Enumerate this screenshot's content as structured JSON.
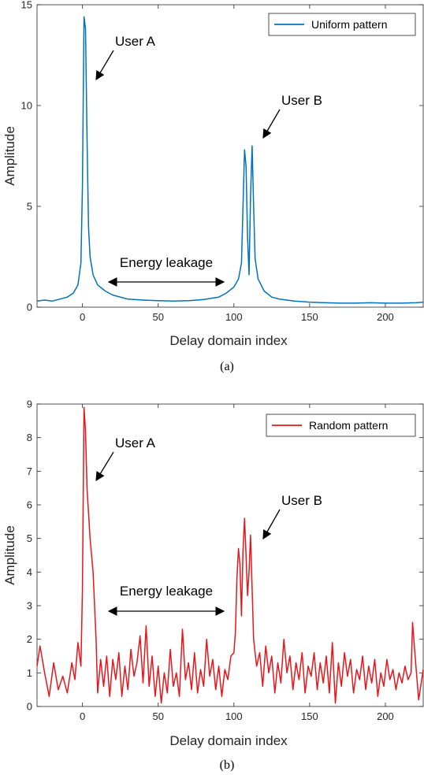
{
  "chart_data": [
    {
      "type": "line",
      "panel_caption": "(a)",
      "xlabel": "Delay domain index",
      "ylabel": "Amplitude",
      "xlim": [
        -30,
        225
      ],
      "ylim": [
        0,
        15
      ],
      "xticks": [
        0,
        50,
        100,
        150,
        200
      ],
      "yticks": [
        0,
        5,
        10,
        15
      ],
      "grid": false,
      "legend_position": "top-right",
      "series": [
        {
          "name": "Uniform pattern",
          "color": "#0072BD",
          "points": [
            [
              -30,
              0.3
            ],
            [
              -25,
              0.35
            ],
            [
              -20,
              0.3
            ],
            [
              -15,
              0.4
            ],
            [
              -10,
              0.5
            ],
            [
              -6,
              0.7
            ],
            [
              -3,
              1.1
            ],
            [
              -1,
              2.2
            ],
            [
              0,
              6.0
            ],
            [
              1,
              14.4
            ],
            [
              2,
              13.8
            ],
            [
              3,
              8.5
            ],
            [
              4,
              4.0
            ],
            [
              5,
              2.5
            ],
            [
              7,
              1.6
            ],
            [
              10,
              1.1
            ],
            [
              15,
              0.8
            ],
            [
              20,
              0.6
            ],
            [
              30,
              0.4
            ],
            [
              40,
              0.35
            ],
            [
              50,
              0.32
            ],
            [
              60,
              0.3
            ],
            [
              70,
              0.32
            ],
            [
              80,
              0.38
            ],
            [
              90,
              0.5
            ],
            [
              95,
              0.7
            ],
            [
              100,
              1.0
            ],
            [
              103,
              1.4
            ],
            [
              105,
              2.2
            ],
            [
              107,
              7.8
            ],
            [
              108,
              7.0
            ],
            [
              109,
              3.5
            ],
            [
              110,
              1.6
            ],
            [
              111,
              5.5
            ],
            [
              112,
              8.0
            ],
            [
              113,
              5.0
            ],
            [
              114,
              2.4
            ],
            [
              116,
              1.4
            ],
            [
              120,
              0.8
            ],
            [
              125,
              0.5
            ],
            [
              130,
              0.4
            ],
            [
              140,
              0.3
            ],
            [
              150,
              0.25
            ],
            [
              160,
              0.22
            ],
            [
              170,
              0.2
            ],
            [
              180,
              0.2
            ],
            [
              190,
              0.22
            ],
            [
              200,
              0.2
            ],
            [
              210,
              0.2
            ],
            [
              220,
              0.22
            ],
            [
              225,
              0.25
            ]
          ]
        }
      ],
      "annotations": {
        "user_a": "User A",
        "user_b": "User B",
        "leakage": "Energy leakage"
      }
    },
    {
      "type": "line",
      "panel_caption": "(b)",
      "xlabel": "Delay domain index",
      "ylabel": "Amplitude",
      "xlim": [
        -30,
        225
      ],
      "ylim": [
        0,
        9
      ],
      "xticks": [
        0,
        50,
        100,
        150,
        200
      ],
      "yticks": [
        0,
        1,
        2,
        3,
        4,
        5,
        6,
        7,
        8,
        9
      ],
      "grid": false,
      "legend_position": "top-right",
      "series": [
        {
          "name": "Random pattern",
          "color": "#E8161B",
          "points": [
            [
              -30,
              1.2
            ],
            [
              -28,
              1.8
            ],
            [
              -25,
              1.0
            ],
            [
              -22,
              0.3
            ],
            [
              -19,
              1.3
            ],
            [
              -16,
              0.5
            ],
            [
              -13,
              0.9
            ],
            [
              -10,
              0.4
            ],
            [
              -7,
              1.3
            ],
            [
              -5,
              0.8
            ],
            [
              -3,
              1.9
            ],
            [
              -1,
              1.2
            ],
            [
              0,
              3.5
            ],
            [
              1,
              8.9
            ],
            [
              2,
              8.2
            ],
            [
              3,
              6.5
            ],
            [
              5,
              5.0
            ],
            [
              7,
              4.0
            ],
            [
              9,
              2.0
            ],
            [
              10,
              0.4
            ],
            [
              12,
              1.4
            ],
            [
              14,
              0.6
            ],
            [
              16,
              1.5
            ],
            [
              18,
              0.3
            ],
            [
              20,
              1.4
            ],
            [
              22,
              0.8
            ],
            [
              24,
              1.6
            ],
            [
              26,
              0.3
            ],
            [
              28,
              1.2
            ],
            [
              30,
              0.5
            ],
            [
              32,
              1.7
            ],
            [
              34,
              0.9
            ],
            [
              36,
              1.3
            ],
            [
              38,
              2.1
            ],
            [
              40,
              0.7
            ],
            [
              42,
              2.4
            ],
            [
              44,
              0.6
            ],
            [
              46,
              1.5
            ],
            [
              48,
              0.3
            ],
            [
              50,
              1.2
            ],
            [
              52,
              0.1
            ],
            [
              54,
              1.0
            ],
            [
              56,
              0.4
            ],
            [
              58,
              1.7
            ],
            [
              60,
              0.6
            ],
            [
              62,
              1.0
            ],
            [
              64,
              0.3
            ],
            [
              66,
              2.3
            ],
            [
              68,
              0.8
            ],
            [
              70,
              1.3
            ],
            [
              72,
              0.5
            ],
            [
              74,
              1.6
            ],
            [
              76,
              0.4
            ],
            [
              78,
              1.1
            ],
            [
              80,
              0.6
            ],
            [
              82,
              2.0
            ],
            [
              84,
              0.9
            ],
            [
              86,
              1.4
            ],
            [
              88,
              0.5
            ],
            [
              90,
              1.2
            ],
            [
              92,
              0.3
            ],
            [
              94,
              1.1
            ],
            [
              96,
              0.8
            ],
            [
              98,
              1.5
            ],
            [
              100,
              1.6
            ],
            [
              101,
              2.2
            ],
            [
              102,
              3.8
            ],
            [
              103,
              4.7
            ],
            [
              104,
              4.2
            ],
            [
              105,
              2.7
            ],
            [
              106,
              4.6
            ],
            [
              107,
              5.6
            ],
            [
              108,
              4.5
            ],
            [
              109,
              3.3
            ],
            [
              110,
              4.0
            ],
            [
              111,
              5.1
            ],
            [
              112,
              3.5
            ],
            [
              113,
              2.0
            ],
            [
              115,
              1.2
            ],
            [
              117,
              1.6
            ],
            [
              119,
              0.6
            ],
            [
              121,
              1.8
            ],
            [
              123,
              1.0
            ],
            [
              125,
              1.5
            ],
            [
              127,
              0.4
            ],
            [
              129,
              1.3
            ],
            [
              131,
              0.7
            ],
            [
              133,
              2.0
            ],
            [
              135,
              1.0
            ],
            [
              137,
              1.5
            ],
            [
              139,
              0.5
            ],
            [
              141,
              1.3
            ],
            [
              143,
              0.8
            ],
            [
              145,
              1.6
            ],
            [
              147,
              0.4
            ],
            [
              149,
              1.2
            ],
            [
              151,
              0.9
            ],
            [
              153,
              1.6
            ],
            [
              155,
              0.5
            ],
            [
              157,
              1.3
            ],
            [
              159,
              0.7
            ],
            [
              161,
              1.5
            ],
            [
              163,
              0.4
            ],
            [
              165,
              1.9
            ],
            [
              167,
              0.1
            ],
            [
              169,
              1.3
            ],
            [
              171,
              0.6
            ],
            [
              173,
              1.6
            ],
            [
              175,
              0.9
            ],
            [
              177,
              1.4
            ],
            [
              179,
              0.4
            ],
            [
              181,
              1.1
            ],
            [
              183,
              0.8
            ],
            [
              185,
              1.5
            ],
            [
              187,
              0.5
            ],
            [
              189,
              1.2
            ],
            [
              191,
              0.7
            ],
            [
              193,
              1.4
            ],
            [
              195,
              0.3
            ],
            [
              197,
              1.0
            ],
            [
              199,
              0.6
            ],
            [
              201,
              1.4
            ],
            [
              203,
              0.8
            ],
            [
              205,
              1.1
            ],
            [
              207,
              0.5
            ],
            [
              209,
              1.0
            ],
            [
              211,
              0.7
            ],
            [
              213,
              1.2
            ],
            [
              215,
              0.8
            ],
            [
              217,
              1.0
            ],
            [
              218,
              2.5
            ],
            [
              220,
              1.3
            ],
            [
              222,
              0.2
            ],
            [
              224,
              0.8
            ],
            [
              225,
              1.1
            ]
          ]
        }
      ],
      "annotations": {
        "user_a": "User A",
        "user_b": "User B",
        "leakage": "Energy leakage"
      }
    }
  ]
}
